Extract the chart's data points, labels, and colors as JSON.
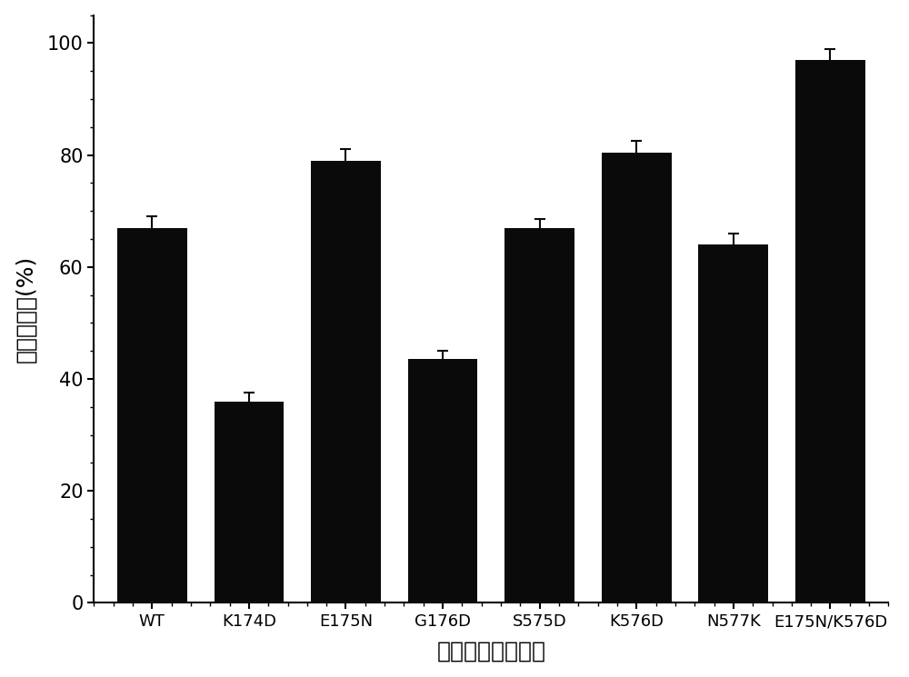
{
  "categories": [
    "WT",
    "K174D",
    "E175N",
    "G176D",
    "S575D",
    "K576D",
    "N577K",
    "E175N/K576D"
  ],
  "values": [
    67.0,
    36.0,
    79.0,
    43.5,
    67.0,
    80.5,
    64.0,
    97.0
  ],
  "errors": [
    2.0,
    1.5,
    2.0,
    1.5,
    1.5,
    2.0,
    2.0,
    2.0
  ],
  "bar_color": "#0a0a0a",
  "bar_width": 0.72,
  "ylabel": "相对酶活力(%)",
  "xlabel": "蔗糖异构酶突变体",
  "ylim": [
    0,
    105
  ],
  "yticks": [
    0,
    20,
    40,
    60,
    80,
    100
  ],
  "background_color": "#ffffff",
  "label_fontsize": 18,
  "tick_fontsize": 15,
  "xtick_fontsize": 13,
  "error_capsize": 4,
  "error_color": "#0a0a0a",
  "error_linewidth": 1.5
}
